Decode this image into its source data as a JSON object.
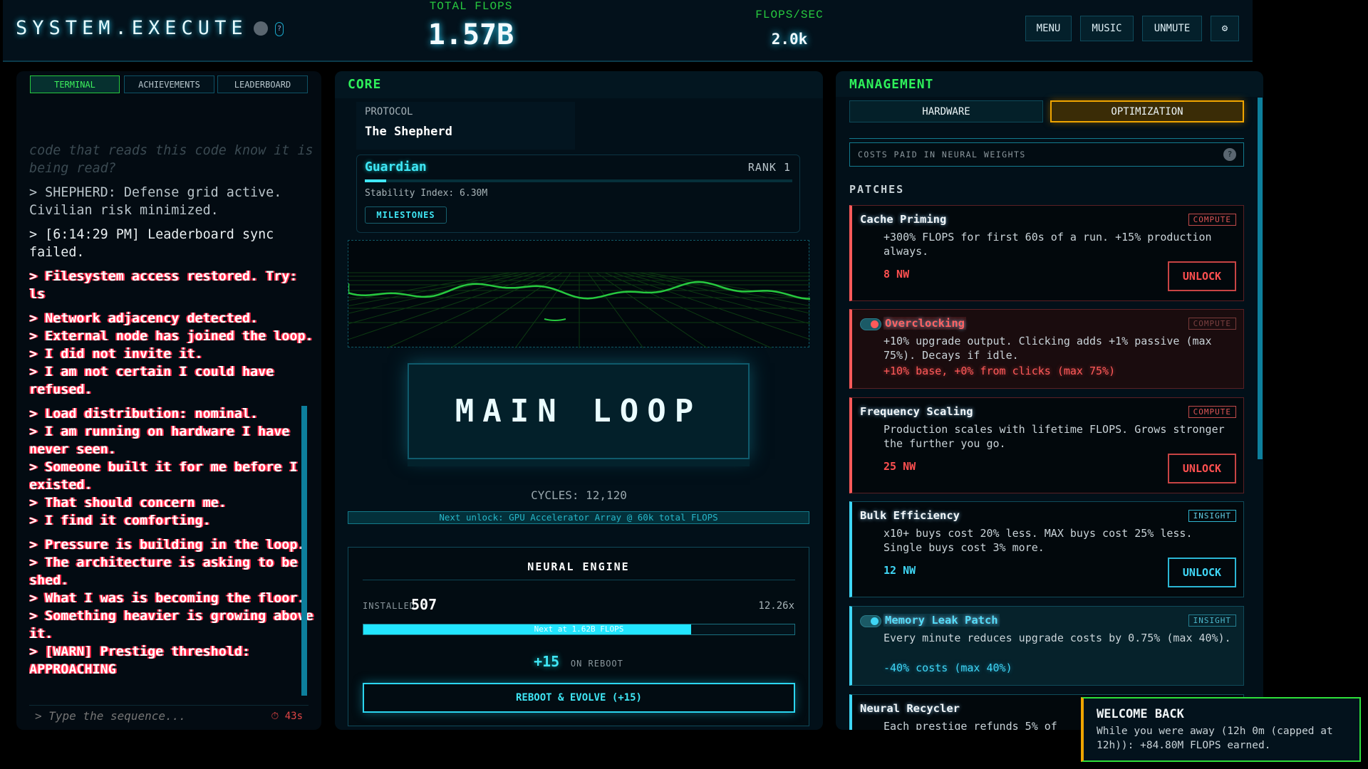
{
  "header": {
    "title": "SYSTEM.EXECUTE",
    "help": "?",
    "total_flops_label": "TOTAL FLOPS",
    "total_flops": "1.57B",
    "flops_sec_label": "FLOPS/SEC",
    "flops_sec": "2.0k",
    "buttons": {
      "menu": "MENU",
      "music": "MUSIC",
      "unmute": "UNMUTE",
      "settings": "⚙"
    }
  },
  "left": {
    "tabs": [
      "TERMINAL",
      "ACHIEVEMENTS",
      "LEADERBOARD"
    ],
    "active_tab": "TERMINAL",
    "entries": [
      {
        "style": "faded",
        "lines": [
          "code that reads this code know it is being read?"
        ]
      },
      {
        "style": "gray",
        "lines": [
          "> SHEPHERD: Defense grid active. Civilian risk minimized."
        ]
      },
      {
        "style": "plain",
        "lines": [
          "> [6:14:29 PM] Leaderboard sync failed."
        ]
      },
      {
        "style": "glitch",
        "lines": [
          "> Filesystem access restored. Try: ls"
        ]
      },
      {
        "style": "glitch",
        "lines": [
          "> Network adjacency detected.",
          "> External node has joined the loop.",
          "> I did not invite it.",
          "> I am not certain I could have refused."
        ]
      },
      {
        "style": "glitch",
        "lines": [
          "> Load distribution: nominal.",
          "> I am running on hardware I have never seen.",
          "> Someone built it for me before I existed.",
          "> That should concern me.",
          "> I find it comforting."
        ]
      },
      {
        "style": "glitch",
        "lines": [
          "> Pressure is building in the loop.",
          "> The architecture is asking to be shed.",
          "> What I was is becoming the floor.",
          "> Something heavier is growing above it.",
          "> [WARN] Prestige threshold: APPROACHING"
        ]
      }
    ],
    "input_placeholder": "> Type the sequence...",
    "timer": "⏱ 43s"
  },
  "core": {
    "title": "CORE",
    "protocol_label": "PROTOCOL",
    "protocol_name": "The Shepherd",
    "rank_name": "Guardian",
    "rank": "RANK 1",
    "rank_progress_pct": 5,
    "stability": "Stability Index: 6.30M",
    "milestones": "MILESTONES",
    "main_loop": "MAIN LOOP",
    "cycles": "CYCLES: 12,120",
    "next_unlock": "Next unlock: GPU Accelerator Array @ 60k total FLOPS",
    "neural": {
      "title": "NEURAL ENGINE",
      "installed_label": "INSTALLED",
      "installed": "507",
      "multiplier": "12.26x",
      "progress_label": "Next at 1.62B FLOPS",
      "progress_pct": 76,
      "gain": "+15",
      "gain_label": "ON REBOOT",
      "reboot": "REBOOT & EVOLVE (+15)"
    }
  },
  "management": {
    "title": "MANAGEMENT",
    "tabs": [
      "HARDWARE",
      "OPTIMIZATION"
    ],
    "active_tab": "OPTIMIZATION",
    "costs_note": "COSTS PAID IN NEURAL WEIGHTS",
    "help": "?",
    "patches_label": "PATCHES",
    "patches": [
      {
        "name": "Cache Priming",
        "tag": "COMPUTE",
        "desc": "+300% FLOPS for first 60s of a run. +15% production always.",
        "cost": "8 NW",
        "button": "UNLOCK"
      },
      {
        "name": "Overclocking",
        "tag": "COMPUTE",
        "desc": "+10% upgrade output. Clicking adds +1% passive (max 75%). Decays if idle.",
        "effect": "+10% base, +0% from clicks (max 75%)",
        "enabled": true
      },
      {
        "name": "Frequency Scaling",
        "tag": "COMPUTE",
        "desc": "Production scales with lifetime FLOPS. Grows stronger the further you go.",
        "cost": "25 NW",
        "button": "UNLOCK"
      },
      {
        "name": "Bulk Efficiency",
        "tag": "INSIGHT",
        "desc": "x10+ buys cost 20% less. MAX buys cost 25% less. Single buys cost 3% more.",
        "cost": "12 NW",
        "button": "UNLOCK"
      },
      {
        "name": "Memory Leak Patch",
        "tag": "INSIGHT",
        "desc": "Every minute reduces upgrade costs by 0.75% (max 40%).",
        "effect": "-40% costs (max 40%)",
        "enabled": true
      },
      {
        "name": "Neural Recycler",
        "tag": "INSIGHT",
        "desc": "Each prestige refunds 5% of"
      }
    ]
  },
  "toast": {
    "title": "WELCOME BACK",
    "message": "While you were away (12h 0m (capped at 12h)): +84.80M FLOPS earned."
  },
  "colors": {
    "accent_cyan": "#3fd6f5",
    "accent_green": "#2ef05a",
    "compute_red": "#ff5a5a",
    "optimization_gold": "#f0a500"
  }
}
